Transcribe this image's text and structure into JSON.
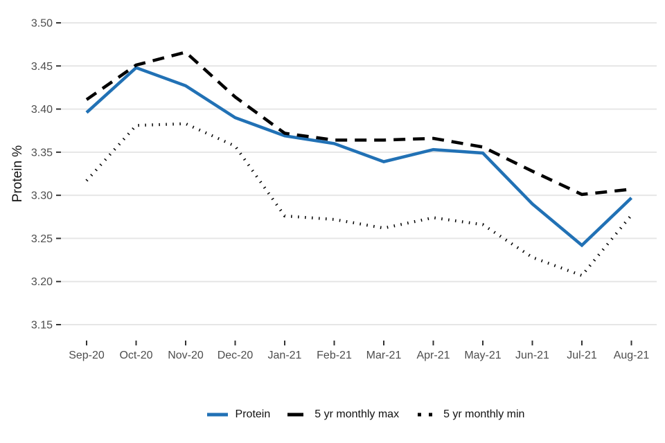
{
  "chart_data": {
    "type": "line",
    "title": "",
    "xlabel": "",
    "ylabel": "Protein %",
    "categories": [
      "Sep-20",
      "Oct-20",
      "Nov-20",
      "Dec-20",
      "Jan-21",
      "Feb-21",
      "Mar-21",
      "Apr-21",
      "May-21",
      "Jun-21",
      "Jul-21",
      "Aug-21"
    ],
    "series": [
      {
        "name": "Protein",
        "color": "#2171b5",
        "style": "solid",
        "values": [
          3.396,
          3.448,
          3.427,
          3.39,
          3.369,
          3.36,
          3.339,
          3.353,
          3.349,
          3.29,
          3.242,
          3.297
        ]
      },
      {
        "name": "5 yr monthly max",
        "color": "#000000",
        "style": "dashed",
        "values": [
          3.411,
          3.451,
          3.466,
          3.414,
          3.372,
          3.364,
          3.364,
          3.366,
          3.356,
          3.328,
          3.301,
          3.307
        ]
      },
      {
        "name": "5 yr monthly min",
        "color": "#000000",
        "style": "dotted",
        "values": [
          3.317,
          3.381,
          3.383,
          3.357,
          3.276,
          3.272,
          3.262,
          3.274,
          3.266,
          3.228,
          3.207,
          3.277
        ]
      }
    ],
    "ylim": [
      3.15,
      3.5
    ],
    "y_ticks": [
      3.5,
      3.45,
      3.4,
      3.35,
      3.3,
      3.25,
      3.2,
      3.15
    ],
    "y_tick_decimals": 2,
    "grid": "horizontal-only",
    "legend_position": "bottom-center",
    "colors": {
      "background": "#ffffff",
      "gridline": "#e6e6e6",
      "tick_mark": "#333333",
      "tick_label": "#4d4d4d",
      "axis_title": "#111111",
      "legend_text": "#111111"
    }
  }
}
